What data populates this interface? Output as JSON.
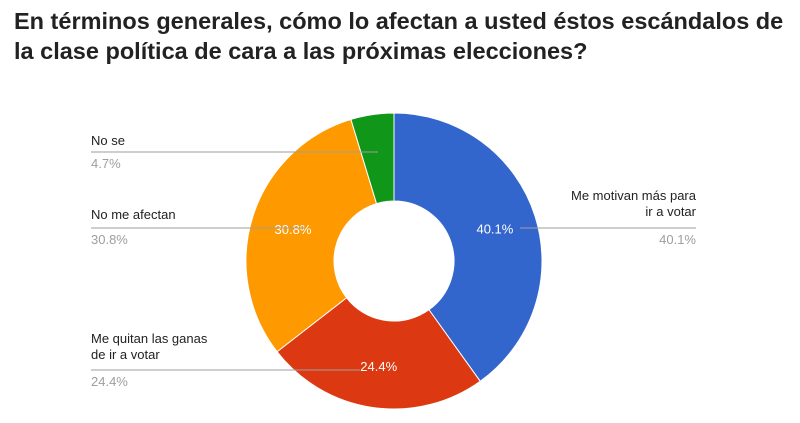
{
  "title_lines": [
    "En términos generales, cómo lo afectan a usted éstos escándalos de",
    "la clase política de cara a las próximas elecciones?"
  ],
  "chart_data": {
    "type": "pie",
    "donut": true,
    "title": "En términos generales, cómo lo afectan a usted éstos escándalos de la clase política de cara a las próximas elecciones?",
    "slices": [
      {
        "label": "Me motivan más para ir a votar",
        "label_lines": [
          "Me motivan más para",
          "ir a votar"
        ],
        "value": 40.1,
        "display": "40.1%",
        "color": "#3366cc"
      },
      {
        "label": "Me quitan las ganas de ir a votar",
        "label_lines": [
          "Me quitan las ganas",
          "de ir a votar"
        ],
        "value": 24.4,
        "display": "24.4%",
        "color": "#dc3912"
      },
      {
        "label": "No me afectan",
        "label_lines": [
          "No me afectan"
        ],
        "value": 30.8,
        "display": "30.8%",
        "color": "#ff9900"
      },
      {
        "label": "No se",
        "label_lines": [
          "No se"
        ],
        "value": 4.7,
        "display": "4.7%",
        "color": "#109618"
      }
    ]
  }
}
